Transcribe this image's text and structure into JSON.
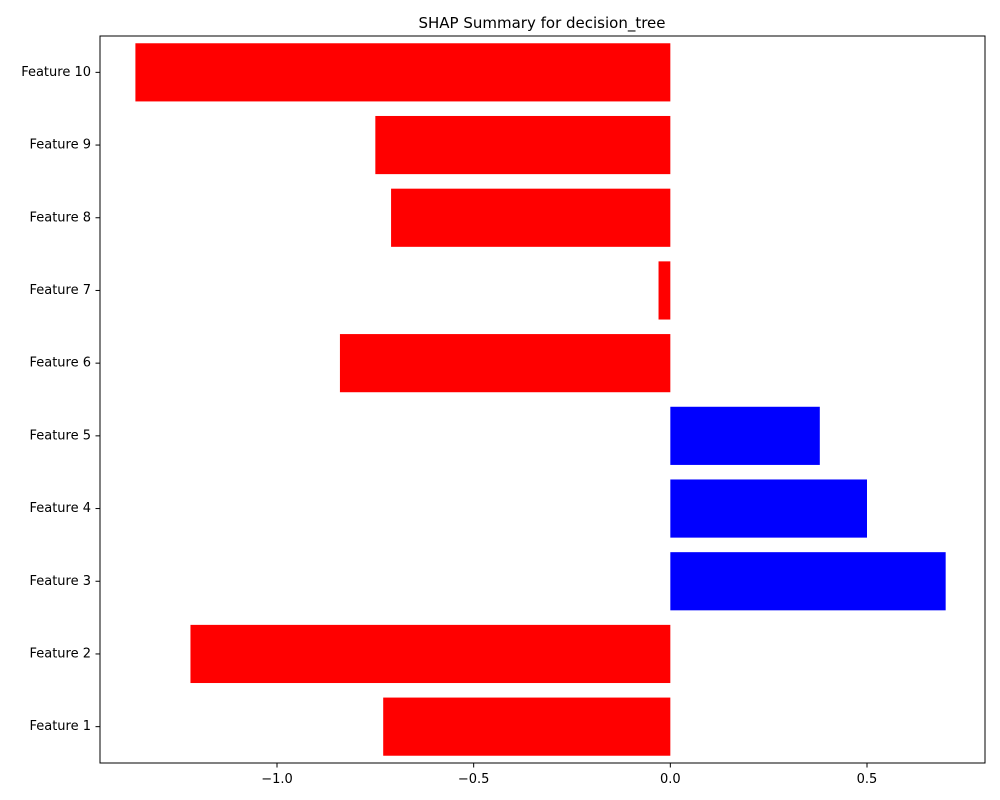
{
  "chart_data": {
    "type": "bar",
    "orientation": "horizontal",
    "title": "SHAP Summary for decision_tree",
    "xlabel": "",
    "ylabel": "",
    "categories": [
      "Feature 1",
      "Feature 2",
      "Feature 3",
      "Feature 4",
      "Feature 5",
      "Feature 6",
      "Feature 7",
      "Feature 8",
      "Feature 9",
      "Feature 10"
    ],
    "values": [
      -0.73,
      -1.22,
      0.7,
      0.5,
      0.38,
      -0.84,
      -0.03,
      -0.71,
      -0.75,
      -1.36
    ],
    "xlim": [
      -1.45,
      0.8
    ],
    "xticks": [
      -1.0,
      -0.5,
      0.0,
      0.5
    ],
    "xtick_labels": [
      "−1.0",
      "−0.5",
      "0.0",
      "0.5"
    ],
    "colors": {
      "positive": "#0000ff",
      "negative": "#ff0000"
    },
    "grid": false,
    "legend": "none"
  }
}
